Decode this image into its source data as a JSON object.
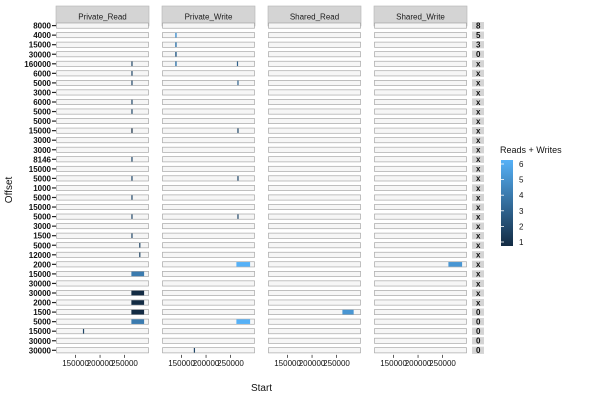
{
  "chart_data": {
    "type": "heatmap",
    "xlabel": "Start",
    "ylabel": "Offset",
    "facets": [
      "Private_Read",
      "Private_Write",
      "Shared_Read",
      "Shared_Write"
    ],
    "x_ticks": [
      "150000",
      "200000",
      "250000"
    ],
    "x_range": [
      110000,
      300000
    ],
    "legend": {
      "title": "Reads + Writes",
      "ticks": [
        "1",
        "2",
        "3",
        "4",
        "5",
        "6"
      ],
      "range": [
        1,
        6
      ],
      "position": "right"
    },
    "low_color": "#132b43",
    "high_color": "#56b1f7",
    "rows": [
      {
        "offset": "8000",
        "right": "8"
      },
      {
        "offset": "4000",
        "right": "5"
      },
      {
        "offset": "15000",
        "right": "3"
      },
      {
        "offset": "30000",
        "right": "0"
      },
      {
        "offset": "160000",
        "right": "x"
      },
      {
        "offset": "6000",
        "right": "x"
      },
      {
        "offset": "5000",
        "right": "x"
      },
      {
        "offset": "3000",
        "right": "x"
      },
      {
        "offset": "6000",
        "right": "x"
      },
      {
        "offset": "5000",
        "right": "x"
      },
      {
        "offset": "5000",
        "right": "x"
      },
      {
        "offset": "15000",
        "right": "x"
      },
      {
        "offset": "3000",
        "right": "x"
      },
      {
        "offset": "3000",
        "right": "x"
      },
      {
        "offset": "8146",
        "right": "x"
      },
      {
        "offset": "15000",
        "right": "x"
      },
      {
        "offset": "5000",
        "right": "x"
      },
      {
        "offset": "1000",
        "right": "x"
      },
      {
        "offset": "5000",
        "right": "x"
      },
      {
        "offset": "15000",
        "right": "x"
      },
      {
        "offset": "5000",
        "right": "x"
      },
      {
        "offset": "3000",
        "right": "x"
      },
      {
        "offset": "1500",
        "right": "x"
      },
      {
        "offset": "5000",
        "right": "x"
      },
      {
        "offset": "12000",
        "right": "x"
      },
      {
        "offset": "2000",
        "right": "x"
      },
      {
        "offset": "15000",
        "right": "x"
      },
      {
        "offset": "30000",
        "right": "x"
      },
      {
        "offset": "30000",
        "right": "x"
      },
      {
        "offset": "2000",
        "right": "x"
      },
      {
        "offset": "1500",
        "right": "0"
      },
      {
        "offset": "5000",
        "right": "0"
      },
      {
        "offset": "15000",
        "right": "0"
      },
      {
        "offset": "30000",
        "right": "0"
      },
      {
        "offset": "30000",
        "right": "0"
      }
    ],
    "tiles": [
      {
        "facet": 1,
        "row": 1,
        "x0": 137000,
        "x1": 140000,
        "value": 5
      },
      {
        "facet": 1,
        "row": 2,
        "x0": 137000,
        "x1": 140000,
        "value": 4
      },
      {
        "facet": 1,
        "row": 3,
        "x0": 137000,
        "x1": 140000,
        "value": 3
      },
      {
        "facet": 1,
        "row": 4,
        "x0": 137000,
        "x1": 140000,
        "value": 4
      },
      {
        "facet": 0,
        "row": 4,
        "x0": 264000,
        "x1": 266000,
        "value": 2
      },
      {
        "facet": 1,
        "row": 4,
        "x0": 263000,
        "x1": 265000,
        "value": 3
      },
      {
        "facet": 0,
        "row": 5,
        "x0": 264000,
        "x1": 265500,
        "value": 2
      },
      {
        "facet": 0,
        "row": 6,
        "x0": 264000,
        "x1": 265500,
        "value": 2
      },
      {
        "facet": 1,
        "row": 6,
        "x0": 264000,
        "x1": 265500,
        "value": 3
      },
      {
        "facet": 0,
        "row": 8,
        "x0": 264000,
        "x1": 265500,
        "value": 2
      },
      {
        "facet": 0,
        "row": 9,
        "x0": 264000,
        "x1": 265500,
        "value": 2
      },
      {
        "facet": 0,
        "row": 11,
        "x0": 264000,
        "x1": 265500,
        "value": 1
      },
      {
        "facet": 1,
        "row": 11,
        "x0": 264000,
        "x1": 265500,
        "value": 2
      },
      {
        "facet": 0,
        "row": 14,
        "x0": 264000,
        "x1": 265500,
        "value": 2
      },
      {
        "facet": 0,
        "row": 16,
        "x0": 264000,
        "x1": 265500,
        "value": 2
      },
      {
        "facet": 1,
        "row": 16,
        "x0": 264000,
        "x1": 265500,
        "value": 2
      },
      {
        "facet": 0,
        "row": 18,
        "x0": 264000,
        "x1": 265500,
        "value": 2
      },
      {
        "facet": 0,
        "row": 20,
        "x0": 264000,
        "x1": 265500,
        "value": 2
      },
      {
        "facet": 1,
        "row": 20,
        "x0": 264000,
        "x1": 265500,
        "value": 2
      },
      {
        "facet": 0,
        "row": 22,
        "x0": 264000,
        "x1": 265500,
        "value": 2
      },
      {
        "facet": 0,
        "row": 23,
        "x0": 280000,
        "x1": 282000,
        "value": 2
      },
      {
        "facet": 0,
        "row": 24,
        "x0": 280000,
        "x1": 282000,
        "value": 2
      },
      {
        "facet": 1,
        "row": 25,
        "x0": 262000,
        "x1": 290000,
        "value": 6
      },
      {
        "facet": 3,
        "row": 25,
        "x0": 262000,
        "x1": 290000,
        "value": 5
      },
      {
        "facet": 0,
        "row": 26,
        "x0": 264000,
        "x1": 290000,
        "value": 4
      },
      {
        "facet": 0,
        "row": 28,
        "x0": 264000,
        "x1": 290000,
        "value": 1
      },
      {
        "facet": 0,
        "row": 29,
        "x0": 264000,
        "x1": 290000,
        "value": 1
      },
      {
        "facet": 0,
        "row": 30,
        "x0": 264000,
        "x1": 290000,
        "value": 1
      },
      {
        "facet": 2,
        "row": 30,
        "x0": 262000,
        "x1": 285000,
        "value": 5
      },
      {
        "facet": 0,
        "row": 31,
        "x0": 264000,
        "x1": 290000,
        "value": 4
      },
      {
        "facet": 1,
        "row": 31,
        "x0": 262000,
        "x1": 290000,
        "value": 6
      },
      {
        "facet": 0,
        "row": 32,
        "x0": 165000,
        "x1": 166500,
        "value": 2
      },
      {
        "facet": 1,
        "row": 34,
        "x0": 175000,
        "x1": 176500,
        "value": 2
      }
    ]
  }
}
